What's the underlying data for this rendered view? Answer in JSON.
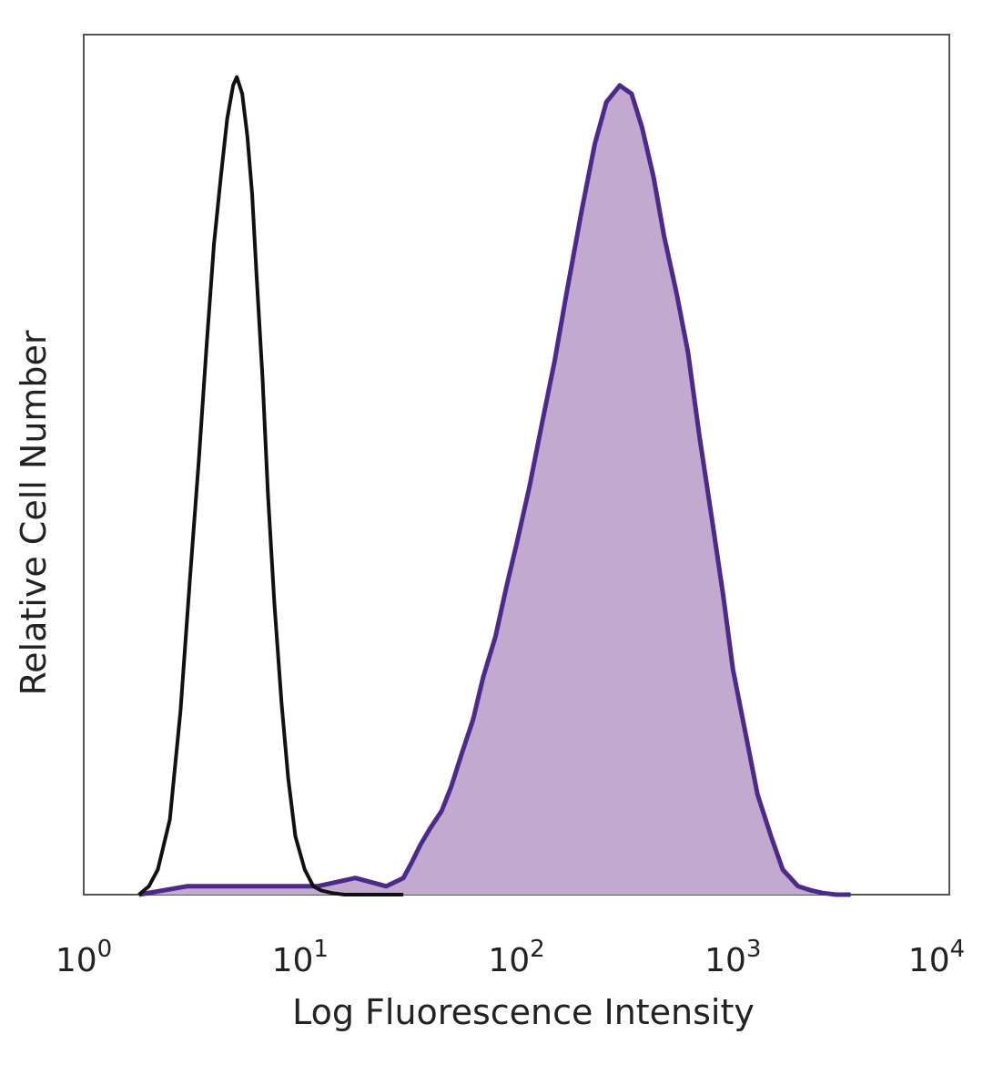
{
  "chart_data": {
    "type": "area",
    "title": "",
    "xlabel": "Log Fluorescence Intensity",
    "ylabel": "Relative Cell Number",
    "x_scale": "log",
    "xlim": [
      1,
      10000
    ],
    "ylim": [
      0,
      1
    ],
    "grid": false,
    "x_ticks": [
      {
        "value": 1,
        "base": "10",
        "exp": "0"
      },
      {
        "value": 10,
        "base": "10",
        "exp": "1"
      },
      {
        "value": 100,
        "base": "10",
        "exp": "2"
      },
      {
        "value": 1000,
        "base": "10",
        "exp": "3"
      },
      {
        "value": 10000,
        "base": "10",
        "exp": "4"
      }
    ],
    "series": [
      {
        "style": "outline",
        "color": "#111111",
        "x": [
          1.8,
          2.0,
          2.2,
          2.5,
          2.8,
          3.1,
          3.4,
          3.7,
          4.0,
          4.3,
          4.6,
          4.9,
          5.1,
          5.4,
          5.7,
          6.0,
          6.3,
          6.7,
          7.1,
          7.6,
          8.2,
          8.8,
          9.5,
          10.5,
          11.5,
          12.5,
          14,
          16,
          20,
          25,
          30
        ],
        "y": [
          0.0,
          0.01,
          0.03,
          0.09,
          0.22,
          0.38,
          0.52,
          0.66,
          0.78,
          0.86,
          0.93,
          0.97,
          0.98,
          0.96,
          0.91,
          0.84,
          0.74,
          0.62,
          0.48,
          0.35,
          0.23,
          0.14,
          0.07,
          0.03,
          0.01,
          0.005,
          0.002,
          0.0,
          0.0,
          0.0,
          0.0
        ]
      },
      {
        "style": "filled",
        "color": "#4b2a8c",
        "fill": "#c3a9cf",
        "x": [
          1.8,
          3,
          5,
          8,
          12,
          18,
          25,
          30,
          33,
          36,
          40,
          45,
          50,
          56,
          63,
          70,
          80,
          90,
          100,
          115,
          130,
          150,
          170,
          200,
          230,
          260,
          300,
          340,
          380,
          430,
          480,
          550,
          620,
          700,
          800,
          900,
          1000,
          1150,
          1300,
          1500,
          1700,
          2000,
          2300,
          2600,
          3000,
          3500
        ],
        "y": [
          0.0,
          0.01,
          0.01,
          0.01,
          0.01,
          0.02,
          0.01,
          0.02,
          0.04,
          0.06,
          0.08,
          0.1,
          0.13,
          0.17,
          0.21,
          0.26,
          0.31,
          0.37,
          0.42,
          0.49,
          0.56,
          0.64,
          0.72,
          0.82,
          0.9,
          0.95,
          0.97,
          0.96,
          0.92,
          0.86,
          0.79,
          0.72,
          0.65,
          0.55,
          0.45,
          0.36,
          0.27,
          0.19,
          0.12,
          0.07,
          0.03,
          0.01,
          0.005,
          0.002,
          0.0,
          0.0
        ]
      }
    ]
  }
}
